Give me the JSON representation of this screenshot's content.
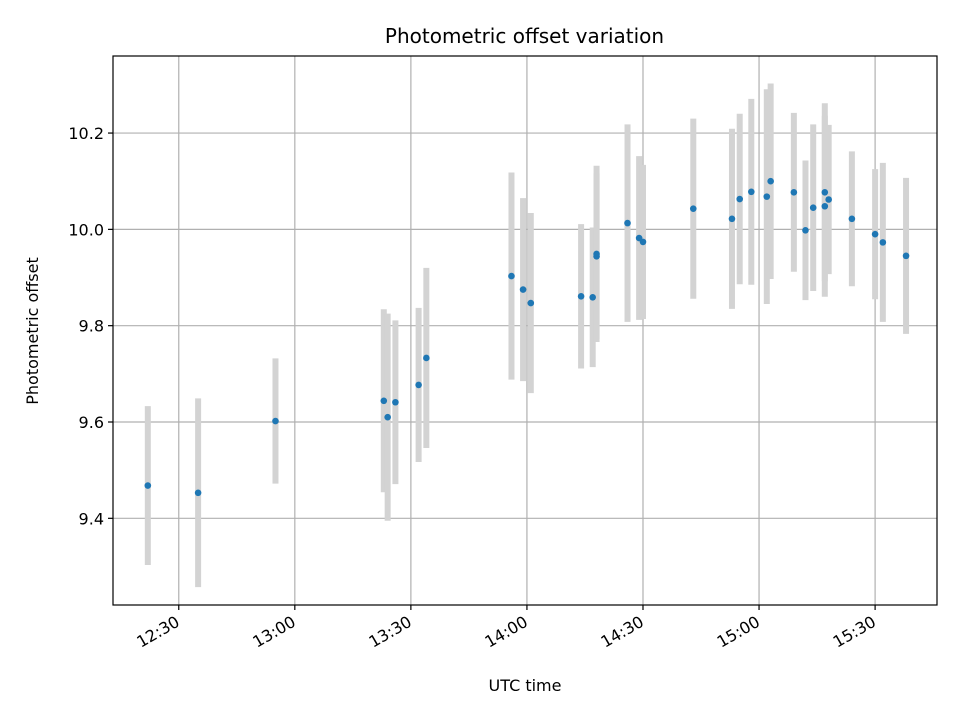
{
  "chart_data": {
    "type": "scatter",
    "title": "Photometric offset variation",
    "xlabel": "UTC time",
    "ylabel": "Photometric offset",
    "x_ticks": [
      "12:30",
      "13:00",
      "13:30",
      "14:00",
      "14:30",
      "15:00",
      "15:30"
    ],
    "y_ticks": [
      "9.4",
      "9.6",
      "9.8",
      "10.0",
      "10.2"
    ],
    "xlim": [
      "12:13",
      "15:46"
    ],
    "ylim": [
      9.22,
      10.36
    ],
    "grid": true,
    "colors": {
      "marker": "#1f77b4",
      "errorbar": "#d3d3d3",
      "grid": "#b0b0b0"
    },
    "points": [
      {
        "time": "12:22",
        "y": 9.468,
        "err": 0.165
      },
      {
        "time": "12:35",
        "y": 9.453,
        "err": 0.196
      },
      {
        "time": "12:55",
        "y": 9.602,
        "err": 0.13
      },
      {
        "time": "13:23",
        "y": 9.644,
        "err": 0.19
      },
      {
        "time": "13:24",
        "y": 9.61,
        "err": 0.215
      },
      {
        "time": "13:26",
        "y": 9.641,
        "err": 0.17
      },
      {
        "time": "13:32",
        "y": 9.677,
        "err": 0.16
      },
      {
        "time": "13:34",
        "y": 9.733,
        "err": 0.187
      },
      {
        "time": "13:56",
        "y": 9.903,
        "err": 0.215
      },
      {
        "time": "13:59",
        "y": 9.875,
        "err": 0.19
      },
      {
        "time": "14:01",
        "y": 9.847,
        "err": 0.187
      },
      {
        "time": "14:14",
        "y": 9.861,
        "err": 0.15
      },
      {
        "time": "14:17",
        "y": 9.859,
        "err": 0.145
      },
      {
        "time": "14:18",
        "y": 9.949,
        "err": 0.183
      },
      {
        "time": "14:18",
        "y": 9.944,
        "err": 0.172
      },
      {
        "time": "14:26",
        "y": 10.013,
        "err": 0.205
      },
      {
        "time": "14:29",
        "y": 9.982,
        "err": 0.17
      },
      {
        "time": "14:30",
        "y": 9.974,
        "err": 0.16
      },
      {
        "time": "14:43",
        "y": 10.043,
        "err": 0.187
      },
      {
        "time": "14:53",
        "y": 10.022,
        "err": 0.187
      },
      {
        "time": "14:55",
        "y": 10.063,
        "err": 0.177
      },
      {
        "time": "14:58",
        "y": 10.078,
        "err": 0.193
      },
      {
        "time": "15:02",
        "y": 10.068,
        "err": 0.223
      },
      {
        "time": "15:03",
        "y": 10.1,
        "err": 0.203
      },
      {
        "time": "15:09",
        "y": 10.077,
        "err": 0.165
      },
      {
        "time": "15:12",
        "y": 9.998,
        "err": 0.145
      },
      {
        "time": "15:14",
        "y": 10.045,
        "err": 0.173
      },
      {
        "time": "15:17",
        "y": 10.048,
        "err": 0.188
      },
      {
        "time": "15:17",
        "y": 10.077,
        "err": 0.185
      },
      {
        "time": "15:18",
        "y": 10.062,
        "err": 0.155
      },
      {
        "time": "15:24",
        "y": 10.022,
        "err": 0.14
      },
      {
        "time": "15:30",
        "y": 9.99,
        "err": 0.135
      },
      {
        "time": "15:32",
        "y": 9.973,
        "err": 0.165
      },
      {
        "time": "15:38",
        "y": 9.945,
        "err": 0.162
      }
    ]
  }
}
